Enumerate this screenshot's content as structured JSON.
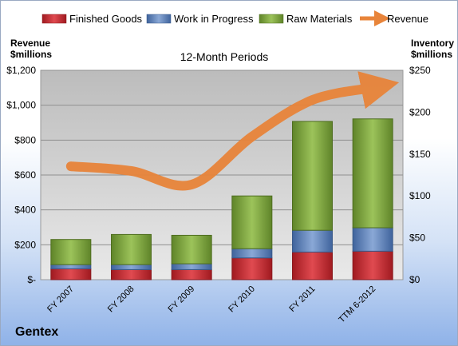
{
  "company": "Gentex",
  "colors": {
    "finished": "#c0262c",
    "wip": "#5b7fb8",
    "raw": "#79a03a",
    "revenue": "#e8843a"
  },
  "chart_data": {
    "type": "bar",
    "stacked": true,
    "title": "12-Month Periods",
    "ylabel_left": "Revenue\n$millions",
    "ylabel_right": "Inventory\n$millions",
    "categories": [
      "FY 2007",
      "FY 2008",
      "FY 2009",
      "FY 2010",
      "FY 2011",
      "TTM 6-2012"
    ],
    "left_axis": {
      "min": 0,
      "max": 1200,
      "step": 200,
      "tick_labels": [
        "$-",
        "$200",
        "$400",
        "$600",
        "$800",
        "$1,000",
        "$1,200"
      ]
    },
    "right_axis": {
      "min": 0,
      "max": 250,
      "step": 50,
      "tick_labels": [
        "$0",
        "$50",
        "$100",
        "$150",
        "$200",
        "$250"
      ]
    },
    "series": [
      {
        "name": "Finished Goods",
        "axis": "right",
        "color": "#c0262c",
        "values": [
          13,
          12,
          12,
          26,
          33,
          34
        ]
      },
      {
        "name": "Work in Progress",
        "axis": "right",
        "color": "#5b7fb8",
        "values": [
          5,
          6,
          7,
          11,
          26,
          28
        ]
      },
      {
        "name": "Raw Materials",
        "axis": "right",
        "color": "#79a03a",
        "values": [
          30,
          36,
          34,
          63,
          130,
          130
        ]
      },
      {
        "name": "Revenue",
        "axis": "left",
        "type": "line",
        "color": "#e8843a",
        "values": [
          650,
          623,
          545,
          820,
          1030,
          1100
        ]
      }
    ],
    "legend_position": "top",
    "grid": true
  }
}
